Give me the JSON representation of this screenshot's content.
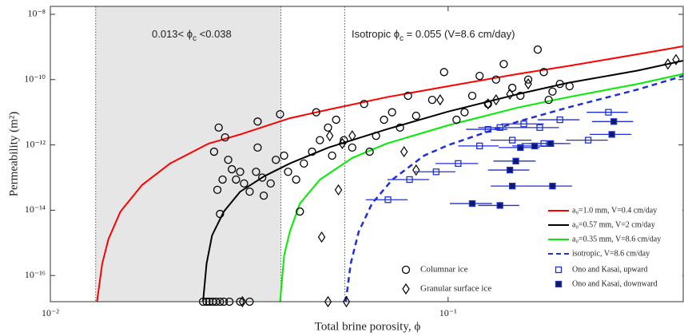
{
  "chart_data": {
    "type": "scatter",
    "xlabel": "Total brine porosity, ϕ",
    "ylabel": "Permeability (m²)",
    "xscale": "log",
    "yscale": "log",
    "xlim": [
      0.01,
      0.39
    ],
    "ylim": [
      1.58e-17,
      1.75e-08
    ],
    "xticks": [
      {
        "value": 0.01,
        "label": "10⁻²"
      },
      {
        "value": 0.1,
        "label": "10⁻¹"
      }
    ],
    "yticks": [
      {
        "value": 1e-16,
        "label": "10⁻¹⁶"
      },
      {
        "value": 1e-14,
        "label": "10⁻¹⁴"
      },
      {
        "value": 1e-12,
        "label": "10⁻¹²"
      },
      {
        "value": 1e-10,
        "label": "10⁻¹⁰"
      },
      {
        "value": 1e-08,
        "label": "10⁻⁸"
      }
    ],
    "shaded_xrange": [
      0.013,
      0.038
    ],
    "vlines": [
      0.013,
      0.038,
      0.055
    ],
    "annotations": [
      {
        "text": "0.013< ϕ",
        "sub": "c",
        "rest": " <0.038"
      },
      {
        "text": "Isotropic ϕ",
        "sub": "c",
        "rest": " = 0.055 (V=8.6 cm/day)"
      }
    ],
    "lines": [
      {
        "name": "a₀=1.0 mm, V=0.4 cm/day",
        "color": "#ff0000",
        "dash": false,
        "x": [
          0.0131,
          0.0135,
          0.014,
          0.015,
          0.017,
          0.02,
          0.025,
          0.03,
          0.04,
          0.05,
          0.07,
          0.1,
          0.15,
          0.2,
          0.3,
          0.39
        ],
        "values": [
          1.58e-17,
          2.3e-16,
          1.3e-15,
          9.1e-15,
          5.9e-14,
          2.7e-13,
          1.1e-12,
          2.1e-12,
          6.6e-12,
          1.2e-11,
          2.9e-11,
          6.3e-11,
          1.5e-10,
          2.6e-10,
          6e-10,
          1.05e-09
        ]
      },
      {
        "name": "a₀=0.57 mm, V=2 cm/day",
        "color": "#000000",
        "dash": false,
        "x": [
          0.0242,
          0.0247,
          0.0255,
          0.0273,
          0.03,
          0.0345,
          0.04,
          0.05,
          0.07,
          0.1,
          0.15,
          0.2,
          0.3,
          0.39
        ],
        "values": [
          1.58e-17,
          2.3e-16,
          1.7e-15,
          9.1e-15,
          3.7e-14,
          1.1e-13,
          2.7e-13,
          8.3e-13,
          3e-12,
          1.05e-11,
          3.6e-11,
          7.9e-11,
          1.9e-10,
          3.8e-10
        ]
      },
      {
        "name": "a₀=0.35 mm, V=8.6 cm/day",
        "color": "#00ee00",
        "dash": false,
        "x": [
          0.0378,
          0.0387,
          0.04,
          0.0424,
          0.0476,
          0.0574,
          0.07,
          0.1,
          0.15,
          0.2,
          0.3,
          0.39
        ],
        "values": [
          1.58e-17,
          4.2e-16,
          2.2e-15,
          1.6e-14,
          8.7e-14,
          4e-13,
          1.1e-12,
          4e-12,
          1.4e-11,
          2.9e-11,
          7.4e-11,
          1.5e-10
        ]
      },
      {
        "name": "isotropic, V=8.6 cm/day",
        "color": "#1f2fd8",
        "dash": true,
        "x": [
          0.0553,
          0.0569,
          0.0596,
          0.0644,
          0.0724,
          0.087,
          0.1,
          0.12,
          0.15,
          0.2,
          0.3,
          0.39
        ],
        "values": [
          1.58e-17,
          2.3e-16,
          2.2e-15,
          1.6e-14,
          8.7e-14,
          4.7e-13,
          9.8e-13,
          2.1e-12,
          5.2e-12,
          1.4e-11,
          5e-11,
          1.3e-10
        ]
      }
    ],
    "series": [
      {
        "name": "Columnar ice",
        "marker": "circle",
        "color": "#000000",
        "x": [
          0.0265,
          0.0275,
          0.0258,
          0.028,
          0.0286,
          0.0271,
          0.0263,
          0.0293,
          0.03,
          0.0307,
          0.0317,
          0.0329,
          0.0341,
          0.0344,
          0.0332,
          0.0267,
          0.0378,
          0.0387,
          0.0396,
          0.0415,
          0.0424,
          0.0434,
          0.0455,
          0.0476,
          0.0499,
          0.0523,
          0.0547,
          0.0574,
          0.0615,
          0.0635,
          0.0659,
          0.069,
          0.0723,
          0.0757,
          0.0793,
          0.0831,
          0.0912,
          0.0977,
          0.105,
          0.11,
          0.115,
          0.12,
          0.126,
          0.132,
          0.138,
          0.145,
          0.152,
          0.159,
          0.168,
          0.174,
          0.183,
          0.191,
          0.202,
          0.179,
          0.0466,
          0.0511,
          0.0358,
          0.0369,
          0.0332,
          0.0242,
          0.0247,
          0.0251,
          0.0256,
          0.0261,
          0.0267,
          0.0273,
          0.0282,
          0.03,
          0.0317
        ],
        "values": [
          3.4e-12,
          1.7e-12,
          6.2e-13,
          3.5e-13,
          1.8e-13,
          8.7e-14,
          4.2e-14,
          8.7e-14,
          1.5e-13,
          6.6e-14,
          3.7e-14,
          1.5e-13,
          1e-13,
          2.8e-14,
          8.3e-13,
          7.7e-15,
          8.7e-12,
          4.7e-13,
          1.5e-13,
          8.7e-14,
          9.1e-15,
          2.7e-13,
          6.2e-13,
          1.4e-12,
          3.4e-12,
          5.9e-12,
          1.4e-12,
          8.3e-13,
          1.8e-11,
          6.2e-13,
          1.9e-12,
          5.9e-12,
          1e-11,
          3.4e-12,
          3.2e-11,
          7.8e-12,
          2.4e-11,
          1.7e-10,
          5.9e-12,
          1e-11,
          3.2e-11,
          1.3e-10,
          1.8e-11,
          1e-10,
          3e-10,
          5.6e-11,
          3.2e-11,
          1e-10,
          8.3e-10,
          1.7e-10,
          4.3e-11,
          7.4e-11,
          6.3e-11,
          2.4e-11,
          1e-11,
          4.7e-13,
          6.6e-14,
          3.5e-13,
          5.2e-12,
          1.58e-17,
          1.58e-17,
          1.58e-17,
          1.58e-17,
          1.58e-17,
          1.58e-17,
          1.58e-17,
          1.58e-17,
          1.58e-17,
          1.58e-17
        ]
      },
      {
        "name": "Granular surface ice",
        "marker": "diamond",
        "color": "#000000",
        "x": [
          0.0504,
          0.053,
          0.0481,
          0.0831,
          0.0955,
          0.126,
          0.132,
          0.143,
          0.159,
          0.357,
          0.374,
          0.0775,
          0.0542,
          0.0574,
          0.0304,
          0.0499,
          0.0555
        ],
        "values": [
          1.9e-12,
          4.2e-14,
          1.5e-15,
          1.7e-13,
          2.4e-11,
          1.8e-11,
          2.4e-11,
          3.6e-11,
          7.4e-11,
          3e-10,
          4.1e-10,
          6.2e-13,
          1.1e-12,
          1.9e-12,
          1.58e-17,
          1.58e-17,
          1.58e-17
        ]
      },
      {
        "name": "Ono and Kasai, upward",
        "marker": "square",
        "color": "#1f2fd8",
        "filled": false,
        "x": [
          0.0706,
          0.08,
          0.0933,
          0.106,
          0.12,
          0.126,
          0.135,
          0.145,
          0.155,
          0.17,
          0.191,
          0.225,
          0.253,
          0.174
        ],
        "values": [
          2.1e-14,
          8.7e-14,
          1.5e-13,
          2.7e-13,
          9.3e-13,
          3e-12,
          3.4e-12,
          1.4e-12,
          4.4e-12,
          3.4e-12,
          5.9e-12,
          1.4e-12,
          1e-11,
          1.1e-12
        ],
        "xerr": [
          0.0085,
          0.0096,
          0.011,
          0.013,
          0.014,
          0.015,
          0.016,
          0.017,
          0.019,
          0.02,
          0.023,
          0.027,
          0.03,
          0.021
        ]
      },
      {
        "name": "Ono and Kasai, downward",
        "marker": "square",
        "color": "#1f2fd8",
        "filled": true,
        "x": [
          0.115,
          0.135,
          0.143,
          0.148,
          0.145,
          0.152,
          0.165,
          0.181,
          0.183,
          0.261,
          0.258
        ],
        "values": [
          1.6e-14,
          1.4e-14,
          1.7e-13,
          3.2e-13,
          5.5e-14,
          8.3e-13,
          9.3e-13,
          1.1e-12,
          5.5e-14,
          5.2e-12,
          2.1e-12
        ],
        "xerr": [
          0.014,
          0.016,
          0.017,
          0.018,
          0.017,
          0.018,
          0.02,
          0.022,
          0.022,
          0.031,
          0.031
        ]
      }
    ]
  }
}
